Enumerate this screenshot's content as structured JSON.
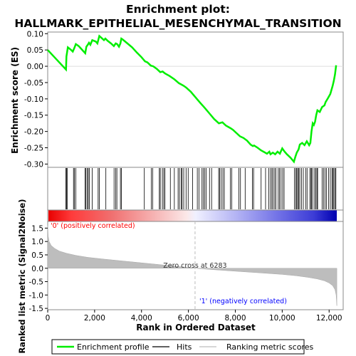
{
  "chart_data": {
    "type": "line",
    "title_line1": "Enrichment plot:",
    "title_line2": "HALLMARK_EPITHELIAL_MESENCHYMAL_TRANSITION",
    "colors": {
      "es_line": "#00ee00",
      "hits": "#000000",
      "metric_fill": "#bdbdbd",
      "pos_label": "#ff0000",
      "neg_label": "#0000ff",
      "zero_line": "#bbbbbb"
    },
    "es_panel": {
      "ylabel": "Enrichment score (ES)",
      "ylim": [
        -0.31,
        0.105
      ],
      "yticks": [
        0.1,
        0.05,
        0.0,
        -0.05,
        -0.1,
        -0.15,
        -0.2,
        -0.25,
        -0.3
      ],
      "ytick_labels": [
        "0.10",
        "0.05",
        "0.00",
        "-0.05",
        "-0.10",
        "-0.15",
        "-0.20",
        "-0.25",
        "-0.30"
      ],
      "points": [
        [
          0,
          0.05
        ],
        [
          780,
          -0.01
        ],
        [
          800,
          0.03
        ],
        [
          860,
          0.058
        ],
        [
          1000,
          0.05
        ],
        [
          1070,
          0.045
        ],
        [
          1130,
          0.055
        ],
        [
          1200,
          0.068
        ],
        [
          1320,
          0.062
        ],
        [
          1500,
          0.048
        ],
        [
          1600,
          0.04
        ],
        [
          1650,
          0.06
        ],
        [
          1700,
          0.065
        ],
        [
          1760,
          0.072
        ],
        [
          1820,
          0.066
        ],
        [
          1900,
          0.08
        ],
        [
          2050,
          0.076
        ],
        [
          2120,
          0.07
        ],
        [
          2200,
          0.093
        ],
        [
          2280,
          0.088
        ],
        [
          2400,
          0.08
        ],
        [
          2460,
          0.085
        ],
        [
          2560,
          0.078
        ],
        [
          2700,
          0.07
        ],
        [
          2820,
          0.062
        ],
        [
          2900,
          0.07
        ],
        [
          2960,
          0.068
        ],
        [
          3040,
          0.06
        ],
        [
          3100,
          0.07
        ],
        [
          3140,
          0.085
        ],
        [
          3200,
          0.082
        ],
        [
          3400,
          0.07
        ],
        [
          3600,
          0.058
        ],
        [
          3800,
          0.042
        ],
        [
          4000,
          0.028
        ],
        [
          4150,
          0.015
        ],
        [
          4250,
          0.012
        ],
        [
          4400,
          0.002
        ],
        [
          4500,
          0.0
        ],
        [
          4650,
          -0.008
        ],
        [
          4800,
          -0.018
        ],
        [
          4900,
          -0.016
        ],
        [
          5000,
          -0.022
        ],
        [
          5200,
          -0.03
        ],
        [
          5400,
          -0.04
        ],
        [
          5600,
          -0.052
        ],
        [
          5750,
          -0.058
        ],
        [
          5800,
          -0.06
        ],
        [
          5900,
          -0.065
        ],
        [
          6100,
          -0.078
        ],
        [
          6300,
          -0.095
        ],
        [
          6500,
          -0.112
        ],
        [
          6700,
          -0.128
        ],
        [
          6900,
          -0.145
        ],
        [
          7100,
          -0.162
        ],
        [
          7300,
          -0.175
        ],
        [
          7450,
          -0.172
        ],
        [
          7600,
          -0.182
        ],
        [
          7800,
          -0.19
        ],
        [
          7900,
          -0.195
        ],
        [
          8050,
          -0.205
        ],
        [
          8200,
          -0.215
        ],
        [
          8350,
          -0.22
        ],
        [
          8500,
          -0.228
        ],
        [
          8650,
          -0.24
        ],
        [
          8750,
          -0.245
        ],
        [
          8800,
          -0.243
        ],
        [
          8950,
          -0.25
        ],
        [
          9100,
          -0.258
        ],
        [
          9200,
          -0.262
        ],
        [
          9350,
          -0.268
        ],
        [
          9450,
          -0.262
        ],
        [
          9500,
          -0.27
        ],
        [
          9600,
          -0.265
        ],
        [
          9700,
          -0.27
        ],
        [
          9800,
          -0.262
        ],
        [
          9900,
          -0.268
        ],
        [
          10000,
          -0.252
        ],
        [
          10100,
          -0.262
        ],
        [
          10200,
          -0.27
        ],
        [
          10350,
          -0.28
        ],
        [
          10500,
          -0.293
        ],
        [
          10560,
          -0.278
        ],
        [
          10620,
          -0.265
        ],
        [
          10700,
          -0.255
        ],
        [
          10750,
          -0.24
        ],
        [
          10850,
          -0.235
        ],
        [
          10950,
          -0.242
        ],
        [
          11050,
          -0.23
        ],
        [
          11150,
          -0.242
        ],
        [
          11200,
          -0.235
        ],
        [
          11250,
          -0.2
        ],
        [
          11300,
          -0.175
        ],
        [
          11350,
          -0.18
        ],
        [
          11400,
          -0.17
        ],
        [
          11450,
          -0.15
        ],
        [
          11500,
          -0.135
        ],
        [
          11600,
          -0.14
        ],
        [
          11700,
          -0.125
        ],
        [
          11800,
          -0.12
        ],
        [
          11850,
          -0.11
        ],
        [
          11950,
          -0.098
        ],
        [
          12050,
          -0.085
        ],
        [
          12150,
          -0.06
        ],
        [
          12200,
          -0.045
        ],
        [
          12250,
          -0.025
        ],
        [
          12300,
          0.003
        ]
      ]
    },
    "hits": [
      770,
      800,
      830,
      1100,
      1140,
      1200,
      1590,
      1630,
      1690,
      1730,
      1780,
      1900,
      2150,
      2200,
      2480,
      2830,
      2900,
      2950,
      3100,
      3140,
      4120,
      4420,
      4480,
      4760,
      4800,
      4890,
      4950,
      5000,
      5230,
      5400,
      5560,
      5620,
      5700,
      5730,
      5800,
      5900,
      5990,
      6180,
      6380,
      6450,
      6580,
      6640,
      6700,
      6760,
      6900,
      6990,
      7290,
      7330,
      7400,
      7470,
      7530,
      7790,
      7850,
      8150,
      8220,
      8420,
      8730,
      8780,
      9100,
      9290,
      9430,
      9500,
      9560,
      9610,
      9680,
      9730,
      9830,
      9880,
      9950,
      10020,
      10080,
      10520,
      10580,
      10620,
      10660,
      10700,
      10750,
      10820,
      10900,
      11000,
      11060,
      11180,
      11230,
      11250,
      11300,
      11380,
      11430,
      11480,
      11510,
      11700,
      11760,
      11830,
      11890,
      11980,
      12050,
      12120,
      12160,
      12200,
      12250,
      12290
    ],
    "metric_panel": {
      "ylabel": "Ranked list metric (Signal2Noise)",
      "ylim": [
        -1.55,
        1.75
      ],
      "yticks": [
        1.5,
        1.0,
        0.5,
        0.0,
        -0.5,
        -1.0,
        -1.5
      ],
      "ytick_labels": [
        "1.5",
        "1.0",
        "0.5",
        "0.0",
        "-0.5",
        "-1.0",
        "-1.5"
      ],
      "curve": [
        [
          0,
          1.6
        ],
        [
          20,
          1.2
        ],
        [
          60,
          1.0
        ],
        [
          150,
          0.85
        ],
        [
          300,
          0.74
        ],
        [
          500,
          0.64
        ],
        [
          800,
          0.56
        ],
        [
          1200,
          0.48
        ],
        [
          1700,
          0.41
        ],
        [
          2300,
          0.35
        ],
        [
          3000,
          0.29
        ],
        [
          3800,
          0.22
        ],
        [
          4600,
          0.15
        ],
        [
          5400,
          0.08
        ],
        [
          6000,
          0.03
        ],
        [
          6283,
          0.0
        ],
        [
          7000,
          -0.05
        ],
        [
          8000,
          -0.11
        ],
        [
          9000,
          -0.17
        ],
        [
          10000,
          -0.23
        ],
        [
          10600,
          -0.28
        ],
        [
          11100,
          -0.34
        ],
        [
          11500,
          -0.4
        ],
        [
          11800,
          -0.47
        ],
        [
          12000,
          -0.55
        ],
        [
          12150,
          -0.65
        ],
        [
          12250,
          -0.8
        ],
        [
          12300,
          -1.0
        ],
        [
          12330,
          -1.4
        ]
      ],
      "zero_cross_label": "Zero cross at 6283",
      "zero_cross_value": 6283,
      "pos_label": "'0' (positively correlated)",
      "neg_label": "'1' (negatively correlated)"
    },
    "xlabel": "Rank in Ordered Dataset",
    "xlim": [
      0,
      12600
    ],
    "n_genes": 12340,
    "xticks": [
      0,
      2000,
      4000,
      6000,
      8000,
      10000,
      12000
    ],
    "xtick_labels": [
      "0",
      "2,000",
      "4,000",
      "6,000",
      "8,000",
      "10,000",
      "12,000"
    ],
    "legend": [
      {
        "label": "Enrichment profile",
        "color": "#00ee00",
        "kind": "line"
      },
      {
        "label": "Hits",
        "color": "#000000",
        "kind": "line"
      },
      {
        "label": "Ranking metric scores",
        "color": "#bdbdbd",
        "kind": "line"
      }
    ]
  }
}
